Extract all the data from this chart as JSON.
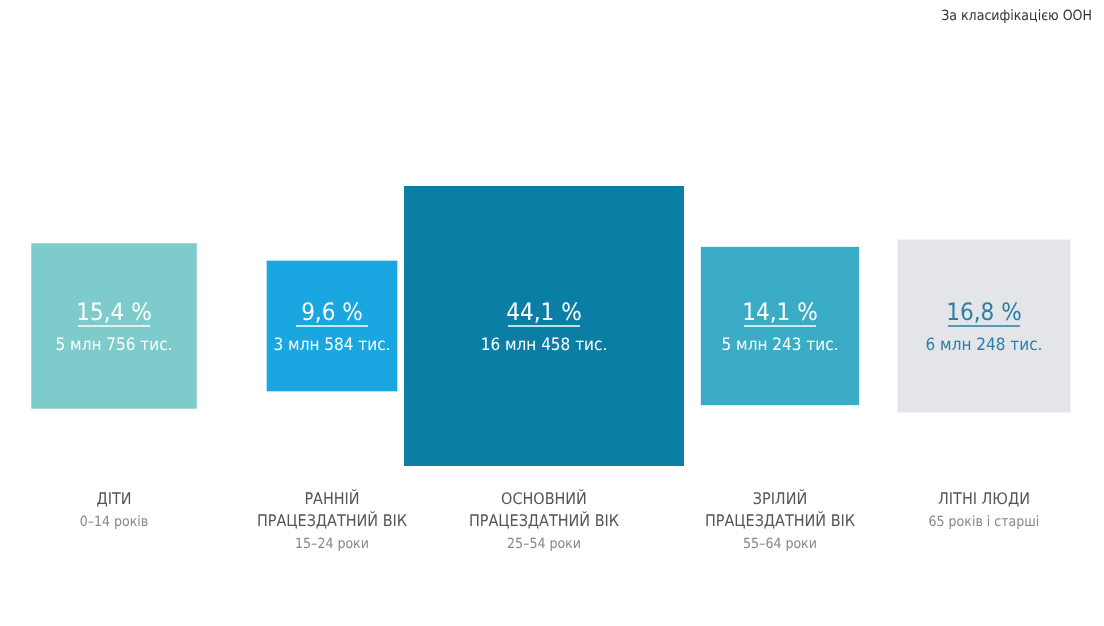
{
  "chart_data": {
    "type": "other",
    "categories": [
      "ДІТИ",
      "РАННІЙ\nПРАЦЕЗДАТНИЙ ВІК",
      "ОСНОВНИЙ\nПРАЦЕЗДАТНИЙ ВІК",
      "ЗРІЛИЙ\nПРАЦЕЗДАТНИЙ ВІК",
      "ЛІТНІ ЛЮДИ"
    ],
    "values": [
      15.4,
      9.6,
      44.1,
      14.1,
      16.8
    ],
    "value_labels": [
      "15,4 %",
      "9,6 %",
      "44,1 %",
      "14,1 %",
      "16,8 %"
    ],
    "colors": [
      "#7ecbcc",
      "#1aa6e0",
      "#0a7ea5",
      "#3aacc6",
      "#e4e5e8"
    ],
    "annotations": [
      {
        "text": "5 млн 756 тис.",
        "x": "ДІТИ"
      },
      {
        "text": "3 млн 584 тис.",
        "x": "РАННІЙ\nПРАЦЕЗДАТНИЙ ВІК"
      },
      {
        "text": "16 млн 458 тис.",
        "x": "ОСНОВНИЙ\nПРАЦЕЗДАТНИЙ ВІК"
      },
      {
        "text": "5 млн 243 тис.",
        "x": "ЗРІЛИЙ\nПРАЦЕЗДАТНИЙ ВІК"
      },
      {
        "text": "6 млн 248 тис.",
        "x": "ЛІТНІ ЛЮДИ"
      },
      {
        "text": "0–14 років",
        "x": "ДІТИ"
      },
      {
        "text": "15–24 роки",
        "x": "РАННІЙ\nПРАЦЕЗДАТНИЙ ВІК"
      },
      {
        "text": "25–54 роки",
        "x": "ОСНОВНИЙ\nПРАЦЕЗДАТНИЙ ВІК"
      },
      {
        "text": "55–64 роки",
        "x": "ЗРІЛИЙ\nПРАЦЕЗДАТНИЙ ВІК"
      },
      {
        "text": "65 років і старші",
        "x": "ЛІТНІ ЛЮДИ"
      },
      "За класифікацією ООН"
    ]
  }
}
